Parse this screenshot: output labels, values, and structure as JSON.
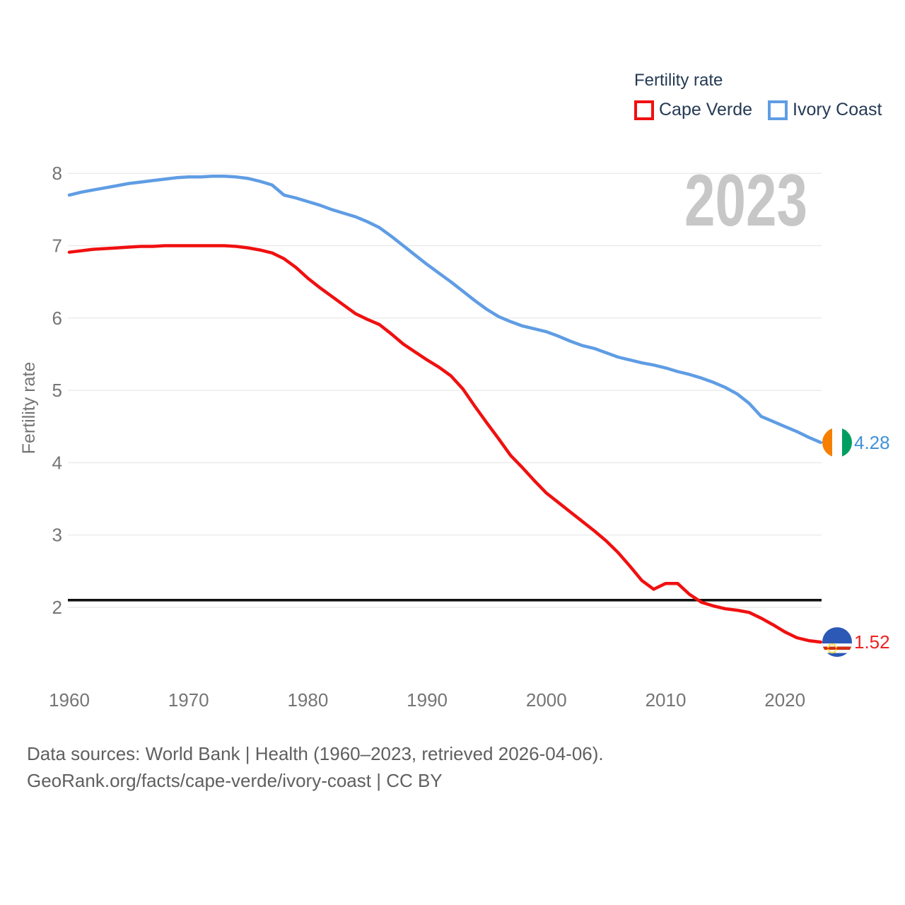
{
  "legend": {
    "title": "Fertility rate",
    "items": [
      {
        "id": "cape-verde",
        "label": "Cape Verde"
      },
      {
        "id": "ivory-coast",
        "label": "Ivory Coast"
      }
    ]
  },
  "footer": {
    "line1": "Data sources: World Bank | Health (1960–2023, retrieved 2026-04-06).",
    "line2": "GeoRank.org/facts/cape-verde/ivory-coast | CC BY"
  },
  "chart_data": {
    "type": "line",
    "title": "Fertility rate",
    "ylabel": "Fertility rate",
    "watermark": "2023",
    "x_start": 1960,
    "x_end": 2023,
    "x_ticks": [
      1960,
      1970,
      1980,
      1990,
      2000,
      2010,
      2020
    ],
    "y_ticks": [
      2,
      3,
      4,
      5,
      6,
      7,
      8
    ],
    "ylim": [
      1.4,
      8.2
    ],
    "grid": "horizontal",
    "legend_position": "top-right",
    "replacement_level": 2.1,
    "gridline_color": "#ececec",
    "replacement_line_color": "#111111",
    "series": [
      {
        "id": "cape-verde",
        "name": "Cape Verde",
        "color": "#f01010",
        "end_label": "1.52",
        "end_value": 1.52,
        "end_label_color": "#ee2222",
        "flag": "cape-verde",
        "flag_colors": {
          "field": "#2b59b5",
          "white": "#ffffff",
          "stripe": "#d42e12",
          "stars": "#ffd000"
        },
        "values": [
          6.91,
          6.93,
          6.95,
          6.96,
          6.97,
          6.98,
          6.99,
          6.99,
          7.0,
          7.0,
          7.0,
          7.0,
          7.0,
          7.0,
          6.99,
          6.97,
          6.94,
          6.9,
          6.82,
          6.7,
          6.55,
          6.42,
          6.3,
          6.18,
          6.06,
          5.98,
          5.91,
          5.78,
          5.64,
          5.53,
          5.42,
          5.32,
          5.2,
          5.02,
          4.78,
          4.55,
          4.33,
          4.1,
          3.93,
          3.75,
          3.58,
          3.45,
          3.32,
          3.19,
          3.06,
          2.92,
          2.76,
          2.57,
          2.37,
          2.25,
          2.33,
          2.33,
          2.18,
          2.07,
          2.02,
          1.98,
          1.96,
          1.93,
          1.85,
          1.76,
          1.66,
          1.58,
          1.54,
          1.52
        ]
      },
      {
        "id": "ivory-coast",
        "name": "Ivory Coast",
        "color": "#5f9de4",
        "end_label": "4.28",
        "end_value": 4.28,
        "end_label_color": "#4292d6",
        "flag": "ivory-coast",
        "flag_colors": {
          "bands": [
            "#f77f00",
            "#ffffff",
            "#009e60"
          ]
        },
        "values": [
          7.7,
          7.74,
          7.77,
          7.8,
          7.83,
          7.86,
          7.88,
          7.9,
          7.92,
          7.94,
          7.95,
          7.95,
          7.96,
          7.96,
          7.95,
          7.93,
          7.89,
          7.84,
          7.7,
          7.66,
          7.61,
          7.56,
          7.5,
          7.45,
          7.4,
          7.33,
          7.25,
          7.13,
          7.0,
          6.87,
          6.74,
          6.62,
          6.5,
          6.37,
          6.24,
          6.12,
          6.02,
          5.95,
          5.89,
          5.85,
          5.81,
          5.75,
          5.68,
          5.62,
          5.58,
          5.52,
          5.46,
          5.42,
          5.38,
          5.35,
          5.31,
          5.26,
          5.22,
          5.17,
          5.11,
          5.04,
          4.95,
          4.82,
          4.64,
          4.57,
          4.5,
          4.43,
          4.35,
          4.28
        ]
      }
    ]
  }
}
